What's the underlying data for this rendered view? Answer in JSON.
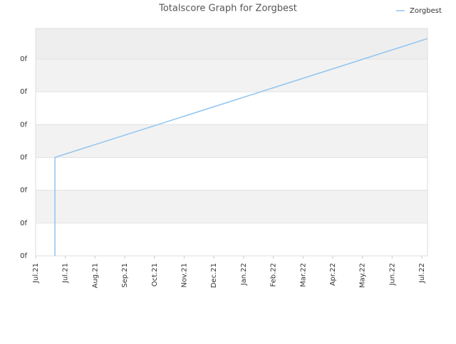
{
  "chart_data": {
    "type": "line",
    "title": "Totalscore Graph for Zorgbest",
    "x": [
      0.65,
      0.65,
      13.19
    ],
    "series": [
      {
        "name": "Zorgbest",
        "color": "#90c4ee",
        "values": [
          0,
          3,
          6.62
        ]
      }
    ],
    "xlim": [
      0,
      13.19
    ],
    "xticks": [
      {
        "value": 0,
        "label": "Jul.21"
      },
      {
        "value": 1,
        "label": "Jul.21"
      },
      {
        "value": 2,
        "label": "Aug.21"
      },
      {
        "value": 3,
        "label": "Sep.21"
      },
      {
        "value": 4,
        "label": "Oct.21"
      },
      {
        "value": 5,
        "label": "Nov.21"
      },
      {
        "value": 6,
        "label": "Dec.21"
      },
      {
        "value": 7,
        "label": "Jan.22"
      },
      {
        "value": 8,
        "label": "Feb.22"
      },
      {
        "value": 9,
        "label": "Mar.22"
      },
      {
        "value": 10,
        "label": "Apr.22"
      },
      {
        "value": 11,
        "label": "May.22"
      },
      {
        "value": 12,
        "label": "Jun.22"
      },
      {
        "value": 13,
        "label": "Jul.22"
      }
    ],
    "ylim": [
      0,
      6.93
    ],
    "yticks": [
      {
        "value": 0,
        "label": "0f"
      },
      {
        "value": 1,
        "label": "0f"
      },
      {
        "value": 2,
        "label": "0f"
      },
      {
        "value": 3,
        "label": "0f"
      },
      {
        "value": 4,
        "label": "0f"
      },
      {
        "value": 5,
        "label": "0f"
      },
      {
        "value": 6,
        "label": "0f"
      }
    ],
    "grid": true,
    "legend": "top-right"
  }
}
